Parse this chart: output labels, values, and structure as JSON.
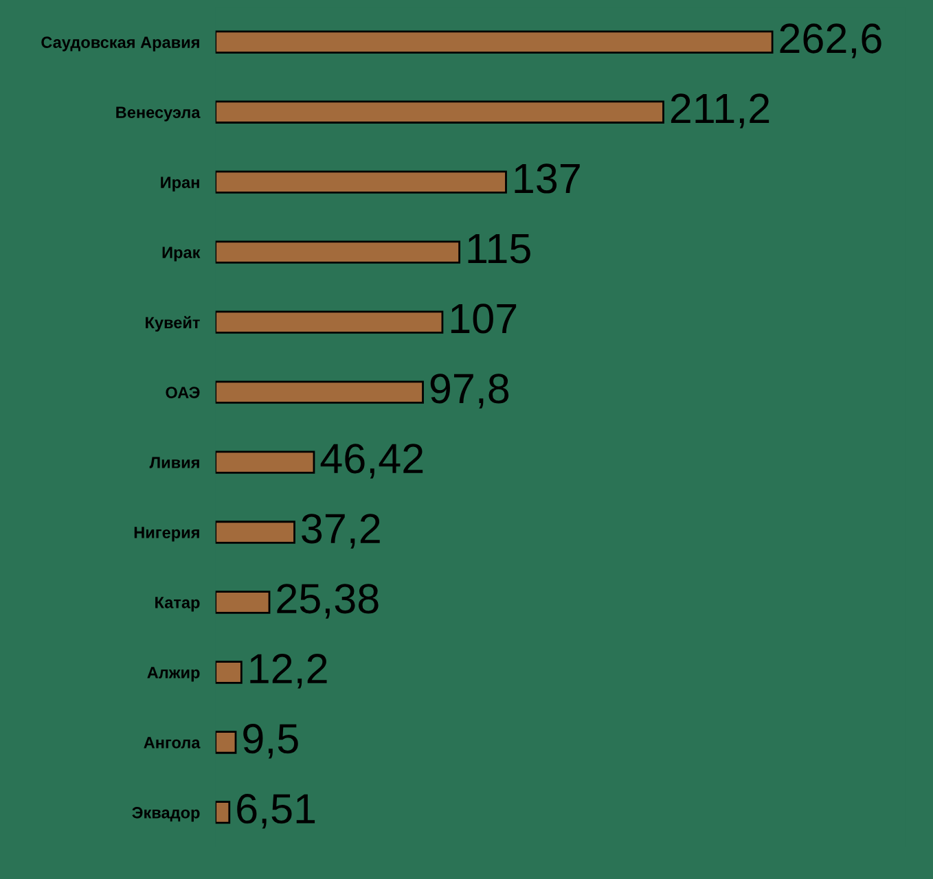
{
  "chart_data": {
    "type": "bar",
    "orientation": "horizontal",
    "categories": [
      "Саудовская Аравия",
      "Венесуэла",
      "Иран",
      "Ирак",
      "Кувейт",
      "ОАЭ",
      "Ливия",
      "Нигерия",
      "Катар",
      "Алжир",
      "Ангола",
      "Эквадор"
    ],
    "values": [
      262.6,
      211.2,
      137,
      115,
      107,
      97.8,
      46.42,
      37.2,
      25.38,
      12.2,
      9.5,
      6.51
    ],
    "value_labels": [
      "262,6",
      "211,2",
      "137",
      "115",
      "107",
      "97,8",
      "46,42",
      "37,2",
      "25,38",
      "12,2",
      "9,5",
      "6,51"
    ],
    "color": "#a36b3c"
  }
}
